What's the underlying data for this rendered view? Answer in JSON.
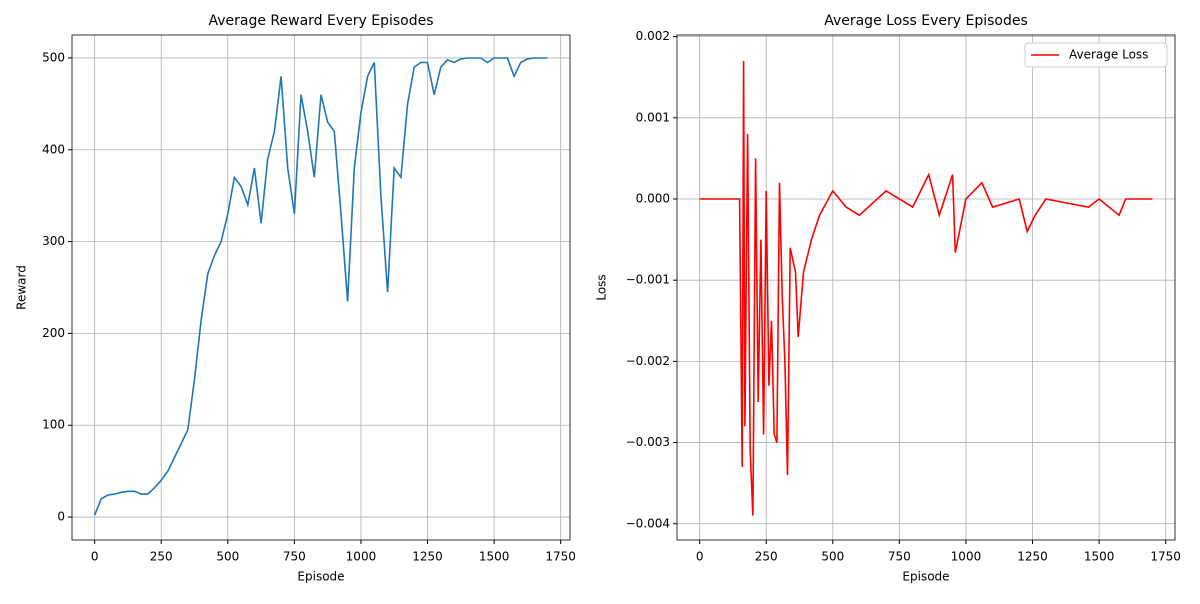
{
  "chart_data": [
    {
      "type": "line",
      "title": "Average Reward Every Episodes",
      "xlabel": "Episode",
      "ylabel": "Reward",
      "x": [
        0,
        25,
        50,
        75,
        100,
        125,
        150,
        175,
        200,
        225,
        250,
        275,
        300,
        325,
        350,
        375,
        400,
        425,
        450,
        475,
        500,
        525,
        550,
        575,
        600,
        625,
        650,
        675,
        700,
        725,
        750,
        775,
        800,
        825,
        850,
        875,
        900,
        925,
        950,
        975,
        1000,
        1025,
        1050,
        1075,
        1100,
        1125,
        1150,
        1175,
        1200,
        1225,
        1250,
        1275,
        1300,
        1325,
        1350,
        1375,
        1400,
        1425,
        1450,
        1475,
        1500,
        1525,
        1550,
        1575,
        1600,
        1625,
        1650,
        1675,
        1700
      ],
      "series": [
        {
          "name": "Average Reward",
          "color": "#1f77b4",
          "values": [
            2,
            20,
            24,
            25,
            27,
            28,
            28,
            25,
            25,
            32,
            40,
            50,
            65,
            80,
            95,
            150,
            215,
            265,
            285,
            300,
            330,
            370,
            360,
            340,
            380,
            320,
            390,
            420,
            480,
            380,
            330,
            460,
            420,
            370,
            460,
            430,
            420,
            330,
            235,
            380,
            440,
            480,
            495,
            350,
            245,
            380,
            370,
            450,
            490,
            495,
            495,
            460,
            490,
            498,
            495,
            499,
            500,
            500,
            500,
            495,
            500,
            500,
            500,
            480,
            495,
            499,
            500,
            500,
            500
          ]
        }
      ],
      "xlim": [
        -85,
        1785
      ],
      "ylim": [
        -25,
        525
      ],
      "xticks": [
        0,
        250,
        500,
        750,
        1000,
        1250,
        1500,
        1750
      ],
      "yticks": [
        0,
        100,
        200,
        300,
        400,
        500
      ],
      "grid": true
    },
    {
      "type": "line",
      "title": "Average Loss Every Episodes",
      "xlabel": "Episode",
      "ylabel": "Loss",
      "x": [
        0,
        50,
        100,
        150,
        160,
        165,
        170,
        180,
        190,
        200,
        210,
        220,
        230,
        240,
        250,
        260,
        270,
        280,
        290,
        300,
        310,
        320,
        330,
        340,
        360,
        370,
        390,
        420,
        450,
        500,
        550,
        600,
        700,
        800,
        860,
        900,
        950,
        960,
        1000,
        1060,
        1100,
        1200,
        1230,
        1260,
        1300,
        1460,
        1500,
        1575,
        1600,
        1700
      ],
      "series": [
        {
          "name": "Average Loss",
          "color": "#ff0000",
          "values": [
            0,
            0,
            0,
            0,
            -0.0033,
            0.0017,
            -0.0028,
            0.0008,
            -0.0031,
            -0.0039,
            0.0005,
            -0.0025,
            -0.0005,
            -0.0029,
            0.0001,
            -0.0023,
            -0.0015,
            -0.0029,
            -0.003,
            0.0002,
            -0.0012,
            -0.002,
            -0.0034,
            -0.0006,
            -0.0009,
            -0.0017,
            -0.0009,
            -0.0005,
            -0.0002,
            0.0001,
            -0.0001,
            -0.0002,
            0.0001,
            -0.0001,
            0.0003,
            -0.0002,
            0.0003,
            -0.00066,
            0,
            0.0002,
            -0.0001,
            0,
            -0.0004,
            -0.0002,
            0,
            -0.0001,
            0,
            -0.0002,
            0,
            0
          ]
        }
      ],
      "xlim": [
        -85,
        1785
      ],
      "ylim": [
        -0.0042,
        0.00202
      ],
      "xticks": [
        0,
        250,
        500,
        750,
        1000,
        1250,
        1500,
        1750
      ],
      "yticks": [
        {
          "value": -0.004,
          "label": "−0.004"
        },
        {
          "value": -0.003,
          "label": "−0.003"
        },
        {
          "value": -0.002,
          "label": "−0.002"
        },
        {
          "value": -0.001,
          "label": "−0.001"
        },
        {
          "value": 0,
          "label": "0.000"
        },
        {
          "value": 0.001,
          "label": "0.001"
        },
        {
          "value": 0.002,
          "label": "0.002"
        }
      ],
      "grid": true,
      "legend": "upper-right"
    }
  ]
}
